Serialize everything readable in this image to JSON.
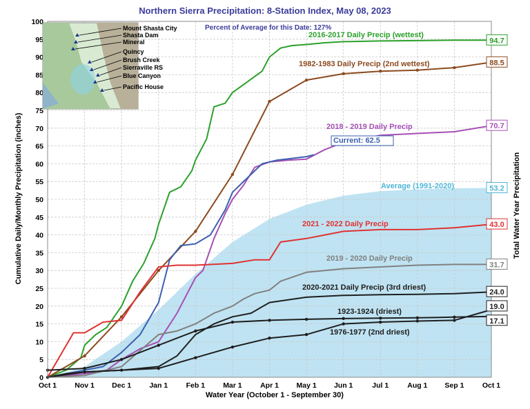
{
  "chart_data": {
    "type": "line",
    "title": "Northern Sierra Precipitation: 8-Station Index, May 08, 2023",
    "subtitle": "Percent of Average for this Date: 127%",
    "xlabel": "Water Year (October 1 - September 30)",
    "ylabel": "Cumulative Daily/Monthly Precipitation (inches)",
    "ylabel_right": "Total Water Year Precipitation",
    "x_ticks": [
      "Oct 1",
      "Nov 1",
      "Dec 1",
      "Jan 1",
      "Feb 1",
      "Mar 1",
      "Apr 1",
      "May 1",
      "Jun 1",
      "Jul 1",
      "Aug 1",
      "Sep 1",
      "Oct 1"
    ],
    "ylim": [
      0,
      100
    ],
    "y_ticks": [
      0,
      5,
      10,
      15,
      20,
      25,
      30,
      35,
      40,
      45,
      50,
      55,
      60,
      65,
      70,
      75,
      80,
      85,
      90,
      95,
      100
    ],
    "grid": true,
    "average": {
      "name": "Average (1991-2020)",
      "color": "#bfe3f2",
      "label_color": "#4fb6d8",
      "end_value": "53.2",
      "points": [
        [
          0,
          0
        ],
        [
          1,
          3
        ],
        [
          2,
          10
        ],
        [
          3,
          19
        ],
        [
          4,
          29
        ],
        [
          5,
          38
        ],
        [
          6,
          44.5
        ],
        [
          7,
          48.5
        ],
        [
          8,
          51
        ],
        [
          9,
          52.3
        ],
        [
          10,
          52.8
        ],
        [
          11,
          53.1
        ],
        [
          12,
          53.2
        ]
      ]
    },
    "series": [
      {
        "name": "2016-2017 Daily Precip (wettest)",
        "color": "#2aa02a",
        "end_value": "94.7",
        "points": [
          [
            0,
            0
          ],
          [
            0.5,
            2
          ],
          [
            0.9,
            5.5
          ],
          [
            1,
            9
          ],
          [
            1.3,
            12
          ],
          [
            1.6,
            14
          ],
          [
            2,
            20
          ],
          [
            2.3,
            27
          ],
          [
            2.6,
            32
          ],
          [
            2.9,
            39
          ],
          [
            3,
            43
          ],
          [
            3.3,
            52
          ],
          [
            3.6,
            53.5
          ],
          [
            3.9,
            58
          ],
          [
            4,
            61
          ],
          [
            4.3,
            67
          ],
          [
            4.5,
            76
          ],
          [
            4.8,
            77
          ],
          [
            5,
            80
          ],
          [
            5.4,
            83
          ],
          [
            5.8,
            86
          ],
          [
            6,
            90
          ],
          [
            6.3,
            92.5
          ],
          [
            6.6,
            93.2
          ],
          [
            7,
            93.5
          ],
          [
            7.5,
            94
          ],
          [
            8,
            94.3
          ],
          [
            9,
            94.5
          ],
          [
            10,
            94.6
          ],
          [
            11,
            94.7
          ],
          [
            12,
            94.7
          ]
        ]
      },
      {
        "name": "1982-1983 Daily Precip (2nd wettest)",
        "color": "#8b4a1f",
        "end_value": "88.5",
        "points": [
          [
            0,
            0
          ],
          [
            1,
            6
          ],
          [
            2,
            17
          ],
          [
            3,
            30
          ],
          [
            4,
            41
          ],
          [
            5,
            57
          ],
          [
            6,
            77.5
          ],
          [
            7,
            83.5
          ],
          [
            8,
            85.3
          ],
          [
            9,
            86
          ],
          [
            10,
            86.3
          ],
          [
            11,
            87
          ],
          [
            12,
            88.5
          ]
        ]
      },
      {
        "name": "2018 - 2019 Daily Precip",
        "color": "#a54fb5",
        "end_value": "70.7",
        "points": [
          [
            0,
            0
          ],
          [
            1,
            1
          ],
          [
            1.6,
            2
          ],
          [
            2,
            5
          ],
          [
            2.5,
            8
          ],
          [
            3,
            10
          ],
          [
            3.5,
            18
          ],
          [
            4,
            28
          ],
          [
            4.2,
            30
          ],
          [
            4.5,
            39
          ],
          [
            4.8,
            46
          ],
          [
            5,
            50
          ],
          [
            5.3,
            54
          ],
          [
            5.6,
            59
          ],
          [
            6,
            60.5
          ],
          [
            6.5,
            61
          ],
          [
            7,
            61.3
          ],
          [
            7.5,
            64
          ],
          [
            8,
            66
          ],
          [
            9,
            68
          ],
          [
            10,
            68.5
          ],
          [
            11,
            69
          ],
          [
            12,
            70.7
          ]
        ]
      },
      {
        "name": "Current: 62.5",
        "color": "#3b5fb0",
        "end_value": "",
        "points": [
          [
            0,
            0
          ],
          [
            1,
            2
          ],
          [
            1.5,
            3
          ],
          [
            2,
            7
          ],
          [
            2.5,
            12
          ],
          [
            3,
            21
          ],
          [
            3.3,
            33
          ],
          [
            3.6,
            37
          ],
          [
            4,
            37.5
          ],
          [
            4.4,
            40
          ],
          [
            4.8,
            47
          ],
          [
            5,
            52
          ],
          [
            5.4,
            56
          ],
          [
            5.8,
            60
          ],
          [
            6.2,
            61
          ],
          [
            6.6,
            61.5
          ],
          [
            7,
            62
          ],
          [
            7.2,
            62.5
          ]
        ]
      },
      {
        "name": "2021 - 2022 Daily Precip",
        "color": "#e03131",
        "end_value": "43.0",
        "points": [
          [
            0,
            0
          ],
          [
            0.7,
            12.5
          ],
          [
            1,
            12.5
          ],
          [
            1.5,
            15.5
          ],
          [
            2,
            16
          ],
          [
            2.5,
            24
          ],
          [
            3,
            31
          ],
          [
            3.5,
            31.5
          ],
          [
            4,
            31.5
          ],
          [
            5,
            32
          ],
          [
            5.6,
            33
          ],
          [
            6,
            33
          ],
          [
            6.3,
            38
          ],
          [
            7,
            39
          ],
          [
            8,
            41
          ],
          [
            9,
            41.5
          ],
          [
            10,
            41.5
          ],
          [
            11,
            42
          ],
          [
            12,
            43
          ]
        ]
      },
      {
        "name": "2019 - 2020 Daily Precip",
        "color": "#808080",
        "end_value": "31.7",
        "points": [
          [
            0,
            0
          ],
          [
            1,
            0.5
          ],
          [
            2,
            3
          ],
          [
            3,
            12
          ],
          [
            3.5,
            13
          ],
          [
            4,
            15
          ],
          [
            4.5,
            18
          ],
          [
            5,
            20
          ],
          [
            5.3,
            22
          ],
          [
            5.6,
            23.5
          ],
          [
            6,
            24.5
          ],
          [
            6.3,
            27
          ],
          [
            7,
            29.5
          ],
          [
            8,
            30.5
          ],
          [
            9,
            31
          ],
          [
            10,
            31.5
          ],
          [
            11,
            31.7
          ],
          [
            12,
            31.7
          ]
        ]
      },
      {
        "name": "2020-2021 Daily Precip (3rd driest)",
        "color": "#1e1e1e",
        "end_value": "24.0",
        "points": [
          [
            0,
            0
          ],
          [
            0.5,
            1
          ],
          [
            1,
            1.5
          ],
          [
            2,
            2
          ],
          [
            3,
            3
          ],
          [
            3.5,
            6
          ],
          [
            4,
            12
          ],
          [
            4.5,
            15
          ],
          [
            5,
            17
          ],
          [
            5.5,
            18
          ],
          [
            6,
            21
          ],
          [
            7,
            22.5
          ],
          [
            8,
            23
          ],
          [
            9,
            23.2
          ],
          [
            10,
            23.3
          ],
          [
            11,
            23.5
          ],
          [
            12,
            24
          ]
        ]
      },
      {
        "name": "1923-1924 (driest)",
        "color": "#1e1e1e",
        "end_value": "17.1",
        "points": [
          [
            0,
            2
          ],
          [
            1,
            2.5
          ],
          [
            2,
            5
          ],
          [
            3,
            9
          ],
          [
            4,
            13
          ],
          [
            5,
            15.5
          ],
          [
            6,
            16
          ],
          [
            7,
            16.3
          ],
          [
            8,
            16.5
          ],
          [
            9,
            16.6
          ],
          [
            10,
            16.7
          ],
          [
            11,
            16.9
          ],
          [
            12,
            17.1
          ]
        ]
      },
      {
        "name": "1976-1977 (2nd driest)",
        "color": "#1e1e1e",
        "end_value": "19.0",
        "points": [
          [
            0,
            0
          ],
          [
            1,
            1.5
          ],
          [
            2,
            2
          ],
          [
            3,
            2.5
          ],
          [
            4,
            5.5
          ],
          [
            5,
            8.5
          ],
          [
            6,
            11
          ],
          [
            7,
            12
          ],
          [
            8,
            15
          ],
          [
            9,
            15.5
          ],
          [
            10,
            15.8
          ],
          [
            11,
            16
          ],
          [
            12,
            19
          ]
        ]
      }
    ],
    "map_inset": {
      "stations": [
        "Mount Shasta City",
        "Shasta Dam",
        "Mineral",
        "Quincy",
        "Brush Creek",
        "Sierraville RS",
        "Blue Canyon",
        "Pacific House"
      ]
    }
  }
}
